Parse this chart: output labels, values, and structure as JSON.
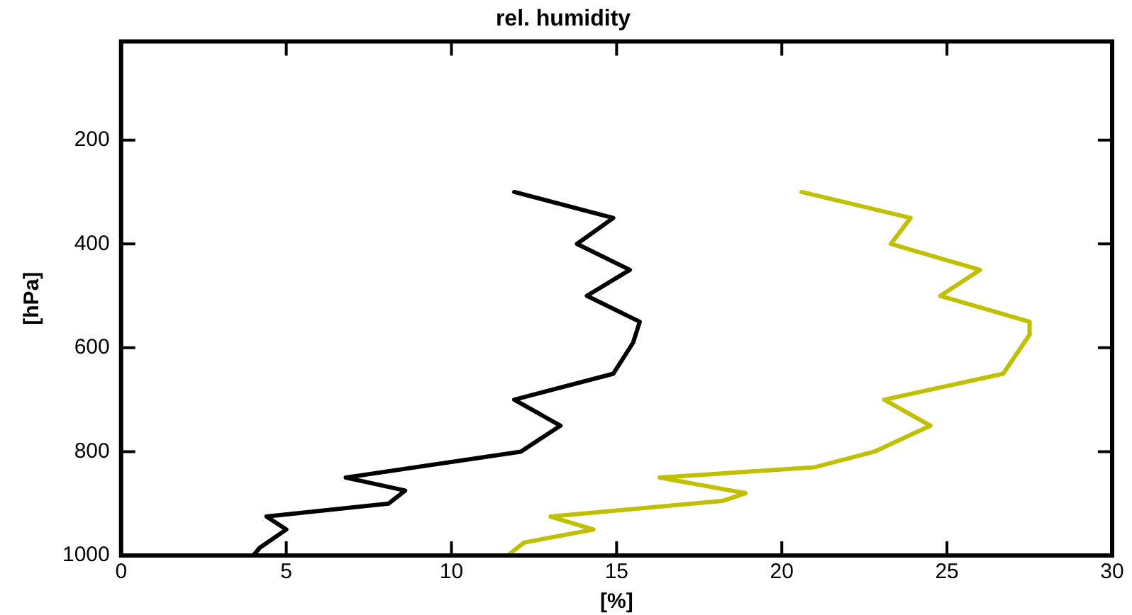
{
  "chart_data": {
    "type": "line",
    "title": "rel. humidity",
    "xlabel": "[%]",
    "ylabel": "[hPa]",
    "xlim": [
      0,
      30
    ],
    "xticks": [
      0,
      5,
      10,
      15,
      20,
      25,
      30
    ],
    "ylim": [
      1000,
      10
    ],
    "yticks": [
      200,
      400,
      600,
      800,
      1000
    ],
    "grid": false,
    "legend": false,
    "marker": "none",
    "line_style": "solid",
    "series": [
      {
        "color": "#000000",
        "x": [
          11.9,
          14.9,
          13.8,
          15.4,
          14.1,
          15.7,
          15.5,
          14.9,
          11.9,
          13.3,
          12.1,
          6.8,
          8.6,
          8.1,
          4.4,
          5.0,
          4.2,
          4.0
        ],
        "values": [
          300,
          350,
          400,
          450,
          500,
          550,
          590,
          650,
          700,
          750,
          800,
          850,
          875,
          900,
          925,
          950,
          985,
          1000
        ]
      },
      {
        "color": "#c0c000",
        "x": [
          20.6,
          23.9,
          23.3,
          26.0,
          24.8,
          27.5,
          27.5,
          26.7,
          23.1,
          24.5,
          22.8,
          21.0,
          16.3,
          18.9,
          18.2,
          13.0,
          14.3,
          12.2,
          11.7
        ],
        "values": [
          300,
          350,
          400,
          450,
          500,
          550,
          575,
          650,
          700,
          750,
          800,
          830,
          850,
          880,
          895,
          925,
          950,
          975,
          1000
        ]
      }
    ]
  }
}
